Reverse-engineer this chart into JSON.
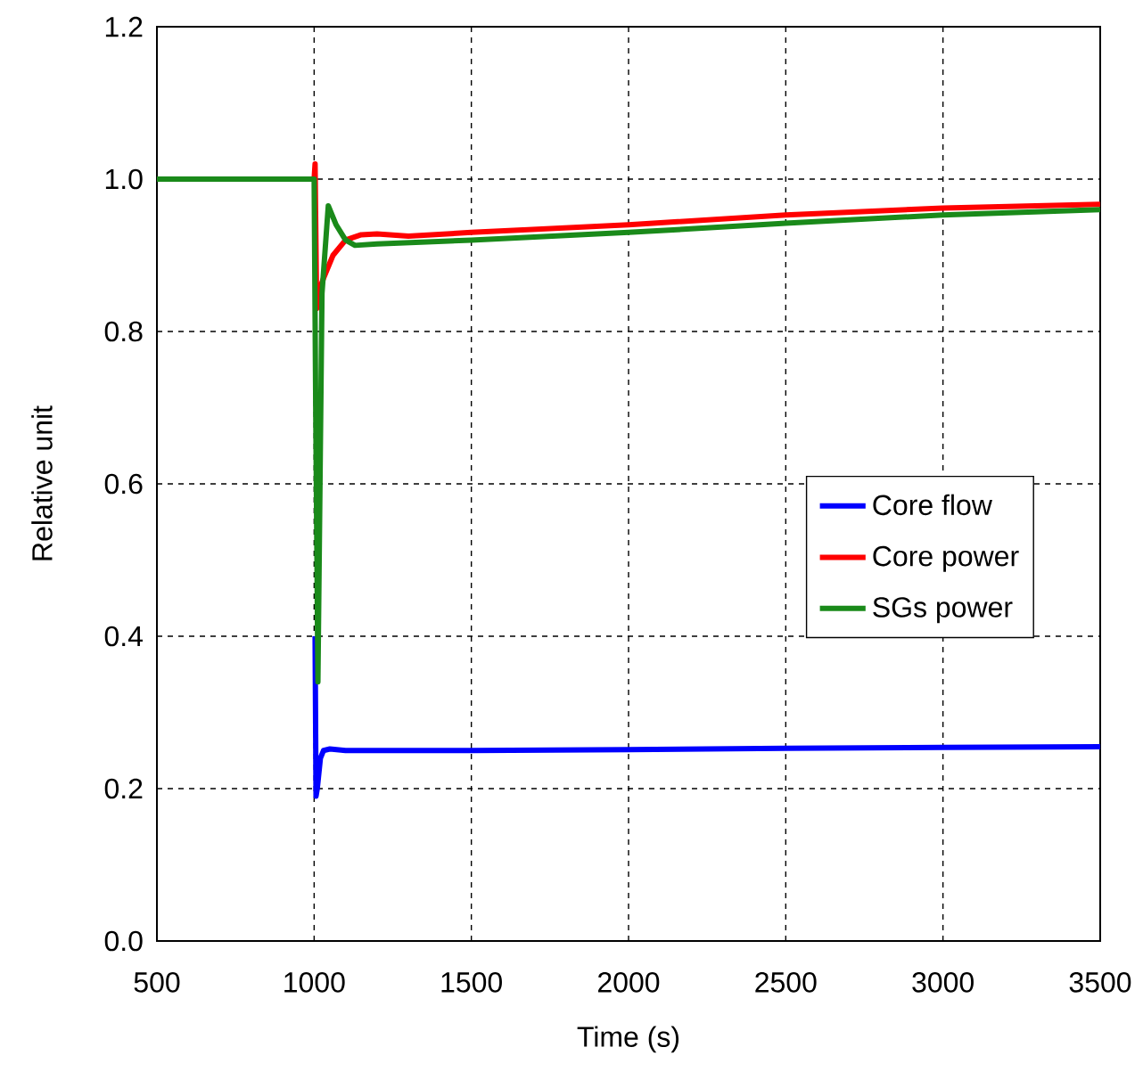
{
  "chart_data": {
    "type": "line",
    "xlabel": "Time (s)",
    "ylabel": "Relative unit",
    "xlim": [
      500,
      3500
    ],
    "ylim": [
      0,
      1.2
    ],
    "xticks": [
      500,
      1000,
      1500,
      2000,
      2500,
      3000,
      3500
    ],
    "yticks": [
      {
        "value": 0,
        "label": "0.0"
      },
      {
        "value": 0.2,
        "label": "0.2"
      },
      {
        "value": 0.4,
        "label": "0.4"
      },
      {
        "value": 0.6,
        "label": "0.6"
      },
      {
        "value": 0.8,
        "label": "0.8"
      },
      {
        "value": 1.0,
        "label": "1.0"
      },
      {
        "value": 1.2,
        "label": "1.2"
      }
    ],
    "grid": true,
    "legend": "right",
    "line_style": "solid",
    "marker": "none",
    "series": [
      {
        "name": "Core flow",
        "color": "#0000ff",
        "x": [
          1003,
          1006,
          1010,
          1020,
          1030,
          1050,
          1100,
          1500,
          2000,
          2500,
          3000,
          3500
        ],
        "values": [
          0.4,
          0.19,
          0.2,
          0.24,
          0.25,
          0.252,
          0.25,
          0.25,
          0.251,
          0.253,
          0.254,
          0.255
        ]
      },
      {
        "name": "Core power",
        "color": "#ff0000",
        "x": [
          500,
          1000,
          1003,
          1008,
          1012,
          1030,
          1060,
          1100,
          1150,
          1200,
          1300,
          1500,
          2000,
          2500,
          3000,
          3500
        ],
        "values": [
          1.0,
          1.0,
          1.02,
          0.83,
          0.85,
          0.87,
          0.9,
          0.92,
          0.927,
          0.928,
          0.925,
          0.93,
          0.94,
          0.953,
          0.962,
          0.967
        ]
      },
      {
        "name": "SGs power",
        "color": "#1a8a1a",
        "x": [
          500,
          1000,
          1005,
          1012,
          1025,
          1045,
          1070,
          1100,
          1130,
          1200,
          1500,
          2000,
          2500,
          3000,
          3500
        ],
        "values": [
          1.0,
          1.0,
          0.7,
          0.34,
          0.85,
          0.965,
          0.94,
          0.92,
          0.913,
          0.915,
          0.92,
          0.93,
          0.942,
          0.953,
          0.96
        ]
      }
    ]
  }
}
